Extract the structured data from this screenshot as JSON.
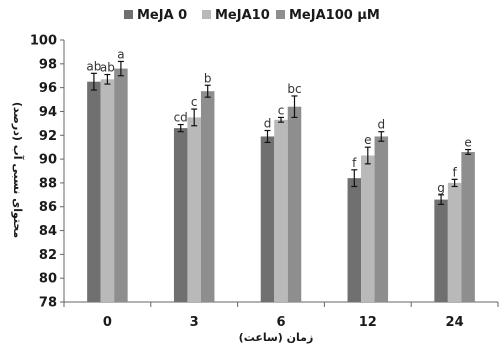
{
  "chart_data": {
    "type": "bar",
    "categories": [
      "0",
      "3",
      "6",
      "12",
      "24"
    ],
    "series": [
      {
        "name": "MeJA 0",
        "color": "#707070",
        "values": [
          96.5,
          92.6,
          91.9,
          88.4,
          86.6
        ],
        "errors": [
          0.7,
          0.3,
          0.5,
          0.7,
          0.4
        ],
        "letters": [
          "ab",
          "cd",
          "d",
          "f",
          "g"
        ]
      },
      {
        "name": "MeJA10",
        "color": "#b9b9b9",
        "values": [
          96.7,
          93.5,
          93.3,
          90.3,
          88.0
        ],
        "errors": [
          0.4,
          0.7,
          0.2,
          0.7,
          0.3
        ],
        "letters": [
          "ab",
          "c",
          "c",
          "e",
          "f"
        ]
      },
      {
        "name": "MeJA100 µM",
        "color": "#8e8e8e",
        "values": [
          97.6,
          95.7,
          94.4,
          91.9,
          90.6
        ],
        "errors": [
          0.6,
          0.5,
          0.9,
          0.4,
          0.2
        ],
        "letters": [
          "a",
          "b",
          "bc",
          "d",
          "e"
        ]
      }
    ],
    "yticks": [
      78,
      80,
      82,
      84,
      86,
      88,
      90,
      92,
      94,
      96,
      98,
      100
    ],
    "ylim": [
      78,
      100
    ],
    "xlabel": "زمان (ساعت)",
    "ylabel": "محتوای نسبی آب (درصد)",
    "grid": false,
    "legend_position": "top"
  }
}
